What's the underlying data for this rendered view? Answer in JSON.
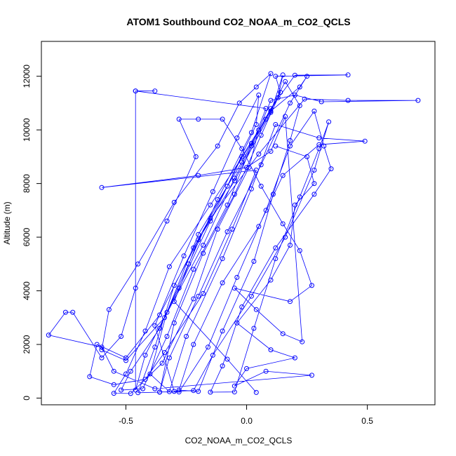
{
  "chart_data": {
    "type": "scatter",
    "title": "ATOM1 Southbound CO2_NOAA_m_CO2_QCLS",
    "xlabel": "CO2_NOAA_m_CO2_QCLS",
    "ylabel": "Altitude (m)",
    "xlim": [
      -0.85,
      0.78
    ],
    "ylim": [
      -250,
      13300
    ],
    "xticks": [
      -0.5,
      0.0,
      0.5
    ],
    "xtick_labels": [
      "-0.5",
      "0.0",
      "0.5"
    ],
    "yticks": [
      0,
      2000,
      4000,
      6000,
      8000,
      10000,
      12000
    ],
    "ytick_labels": [
      "0",
      "2000",
      "4000",
      "6000",
      "8000",
      "10000",
      "12000"
    ],
    "series": [
      {
        "name": "CO2_NOAA_m_CO2_QCLS",
        "color": "#0000ff",
        "style": "line+points",
        "points": [
          [
            0.04,
            210
          ],
          [
            -0.08,
            1450
          ],
          [
            -0.3,
            3600
          ],
          [
            -0.2,
            5900
          ],
          [
            -0.05,
            8100
          ],
          [
            0.1,
            10650
          ],
          [
            0.15,
            12050
          ],
          [
            0.13,
            11200
          ],
          [
            0.02,
            9500
          ],
          [
            -0.15,
            7200
          ],
          [
            -0.32,
            4900
          ],
          [
            -0.42,
            2500
          ],
          [
            -0.5,
            900
          ],
          [
            -0.55,
            180
          ],
          [
            -0.48,
            170
          ],
          [
            -0.35,
            1300
          ],
          [
            -0.22,
            3700
          ],
          [
            -0.12,
            6300
          ],
          [
            0.01,
            8600
          ],
          [
            0.05,
            10000
          ],
          [
            0.1,
            11100
          ],
          [
            0.2,
            11300
          ],
          [
            0.31,
            11050
          ],
          [
            0.71,
            11100
          ],
          [
            0.42,
            11100
          ],
          [
            0.24,
            11150
          ],
          [
            0.05,
            9100
          ],
          [
            -0.15,
            6700
          ],
          [
            -0.3,
            4200
          ],
          [
            -0.38,
            1900
          ],
          [
            -0.45,
            200
          ],
          [
            -0.36,
            220
          ],
          [
            -0.3,
            2800
          ],
          [
            -0.18,
            5400
          ],
          [
            -0.05,
            7600
          ],
          [
            0.06,
            9800
          ],
          [
            0.14,
            11400
          ],
          [
            0.12,
            12000
          ],
          [
            0.42,
            12050
          ],
          [
            0.2,
            12040
          ],
          [
            0.1,
            10800
          ],
          [
            -0.02,
            8800
          ],
          [
            -0.2,
            6100
          ],
          [
            -0.33,
            3200
          ],
          [
            -0.4,
            900
          ],
          [
            -0.32,
            240
          ],
          [
            -0.25,
            2300
          ],
          [
            -0.1,
            5200
          ],
          [
            0.02,
            7800
          ],
          [
            0.12,
            10200
          ],
          [
            0.3,
            9700
          ],
          [
            0.49,
            9580
          ],
          [
            0.3,
            9450
          ],
          [
            0.15,
            8300
          ],
          [
            0.05,
            6400
          ],
          [
            -0.1,
            4300
          ],
          [
            -0.22,
            2000
          ],
          [
            -0.28,
            300
          ],
          [
            -0.2,
            250
          ],
          [
            -0.1,
            2500
          ],
          [
            0.03,
            5100
          ],
          [
            0.11,
            7600
          ],
          [
            0.18,
            9600
          ],
          [
            0.22,
            10900
          ],
          [
            0.16,
            11800
          ],
          [
            0.08,
            10400
          ],
          [
            -0.05,
            8200
          ],
          [
            -0.18,
            5700
          ],
          [
            -0.34,
            3000
          ],
          [
            -0.5,
            1400
          ],
          [
            -0.6,
            1800
          ],
          [
            -0.57,
            3300
          ],
          [
            -0.45,
            5000
          ],
          [
            -0.3,
            7300
          ],
          [
            -0.12,
            9400
          ],
          [
            -0.03,
            11000
          ],
          [
            0.04,
            11600
          ],
          [
            0.1,
            12100
          ],
          [
            0.02,
            9900
          ],
          [
            -0.12,
            7400
          ],
          [
            -0.24,
            5000
          ],
          [
            -0.36,
            2600
          ],
          [
            -0.48,
            1000
          ],
          [
            -0.52,
            300
          ],
          [
            -0.43,
            350
          ],
          [
            -0.33,
            2300
          ],
          [
            -0.22,
            4800
          ],
          [
            -0.08,
            7200
          ],
          [
            0.02,
            9400
          ],
          [
            0.08,
            10800
          ],
          [
            -0.46,
            11450
          ],
          [
            -0.38,
            11450
          ],
          [
            -0.46,
            11450
          ],
          [
            -0.46,
            300
          ],
          [
            -0.42,
            1600
          ],
          [
            -0.28,
            4100
          ],
          [
            -0.15,
            6600
          ],
          [
            -0.02,
            9000
          ],
          [
            0.1,
            10700
          ],
          [
            0.22,
            11600
          ],
          [
            0.25,
            12000
          ],
          [
            0.18,
            11000
          ],
          [
            0.06,
            8700
          ],
          [
            -0.08,
            6200
          ],
          [
            -0.2,
            3800
          ],
          [
            -0.32,
            1500
          ],
          [
            -0.36,
            230
          ],
          [
            -0.28,
            230
          ],
          [
            -0.16,
            1900
          ],
          [
            -0.04,
            4500
          ],
          [
            0.08,
            7000
          ],
          [
            0.18,
            9400
          ],
          [
            0.28,
            10700
          ],
          [
            0.32,
            9400
          ],
          [
            0.35,
            8550
          ],
          [
            0.28,
            7600
          ],
          [
            0.12,
            5600
          ],
          [
            -0.02,
            3400
          ],
          [
            -0.1,
            1200
          ],
          [
            -0.15,
            220
          ],
          [
            -0.05,
            230
          ],
          [
            0.03,
            2600
          ],
          [
            0.12,
            5200
          ],
          [
            0.22,
            7500
          ],
          [
            0.3,
            9300
          ],
          [
            0.34,
            10300
          ],
          [
            0.28,
            8500
          ],
          [
            0.16,
            6000
          ],
          [
            0.02,
            3800
          ],
          [
            -0.14,
            1600
          ],
          [
            -0.22,
            280
          ],
          [
            -0.3,
            250
          ],
          [
            -0.38,
            2700
          ],
          [
            -0.26,
            5300
          ],
          [
            -0.14,
            7700
          ],
          [
            -0.04,
            9700
          ],
          [
            0.05,
            11300
          ],
          [
            0.04,
            10200
          ],
          [
            -0.08,
            7900
          ],
          [
            -0.22,
            5600
          ],
          [
            -0.36,
            3100
          ],
          [
            -0.5,
            1500
          ],
          [
            -0.62,
            2000
          ],
          [
            -0.65,
            800
          ],
          [
            -0.55,
            500
          ],
          [
            -0.42,
            700
          ],
          [
            -0.34,
            1700
          ],
          [
            -0.18,
            3900
          ],
          [
            -0.06,
            6300
          ],
          [
            0.04,
            8500
          ],
          [
            -0.6,
            7850
          ],
          [
            -0.2,
            8300
          ],
          [
            0.0,
            8600
          ],
          [
            0.1,
            9200
          ],
          [
            0.16,
            10500
          ],
          [
            0.23,
            2100
          ],
          [
            0.15,
            2400
          ],
          [
            0.04,
            3300
          ],
          [
            -0.05,
            4100
          ],
          [
            0.18,
            3600
          ],
          [
            0.27,
            4200
          ],
          [
            0.22,
            5500
          ],
          [
            0.15,
            6500
          ],
          [
            0.06,
            7900
          ],
          [
            -0.02,
            9300
          ],
          [
            -0.1,
            10400
          ],
          [
            -0.2,
            10400
          ],
          [
            -0.28,
            10400
          ],
          [
            -0.21,
            9000
          ],
          [
            -0.33,
            6600
          ],
          [
            -0.46,
            4100
          ],
          [
            -0.52,
            2300
          ],
          [
            -0.6,
            1500
          ],
          [
            -0.72,
            3200
          ],
          [
            -0.75,
            3200
          ],
          [
            -0.82,
            2350
          ],
          [
            -0.6,
            1900
          ],
          [
            -0.55,
            1000
          ],
          [
            -0.38,
            350
          ],
          [
            0.27,
            850
          ],
          [
            0.08,
            1000
          ],
          [
            -0.05,
            450
          ],
          [
            0.0,
            1100
          ],
          [
            0.2,
            1500
          ],
          [
            0.1,
            1800
          ],
          [
            -0.04,
            2800
          ],
          [
            0.1,
            4400
          ],
          [
            0.18,
            5700
          ],
          [
            0.2,
            7200
          ],
          [
            0.28,
            8000
          ],
          [
            0.25,
            9000
          ],
          [
            0.12,
            9400
          ]
        ]
      }
    ]
  }
}
